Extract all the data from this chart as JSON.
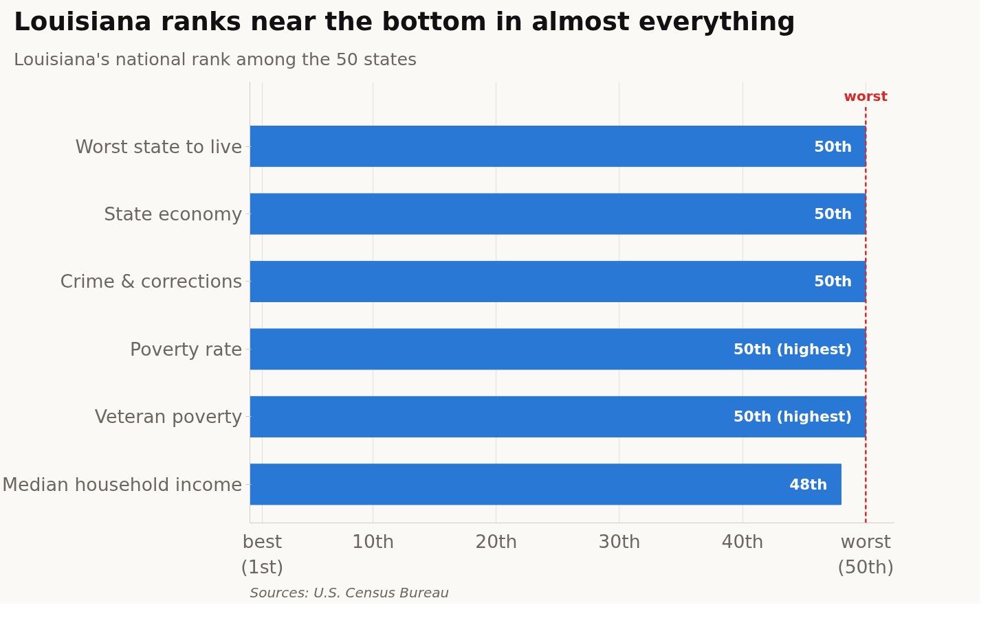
{
  "chart_data": {
    "type": "bar",
    "orientation": "horizontal",
    "title": "Louisiana ranks near the bottom in almost everything",
    "subtitle": "Louisiana's national rank among the 50 states",
    "categories": [
      "Worst state to live",
      "State economy",
      "Crime & corrections",
      "Poverty rate",
      "Veteran poverty",
      "Median household income"
    ],
    "values": [
      50,
      50,
      50,
      50,
      50,
      48
    ],
    "value_labels": [
      "50th",
      "50th",
      "50th",
      "50th (highest)",
      "50th (highest)",
      "48th"
    ],
    "color": "#2a78d6",
    "xlim": [
      0,
      52.3
    ],
    "xticks": [
      {
        "value": 1,
        "label": "best\n(1st)"
      },
      {
        "value": 10,
        "label": "10th"
      },
      {
        "value": 20,
        "label": "20th"
      },
      {
        "value": 30,
        "label": "30th"
      },
      {
        "value": 40,
        "label": "40th"
      },
      {
        "value": 50,
        "label": "worst\n(50th)"
      }
    ],
    "grid": "x",
    "ref_lines": [
      {
        "axis": "x",
        "value": 50,
        "label": "worst",
        "color": "#d62a2a",
        "line_style": "dashed"
      }
    ],
    "annotations": [
      "Sources: U.S. Census Bureau"
    ]
  }
}
